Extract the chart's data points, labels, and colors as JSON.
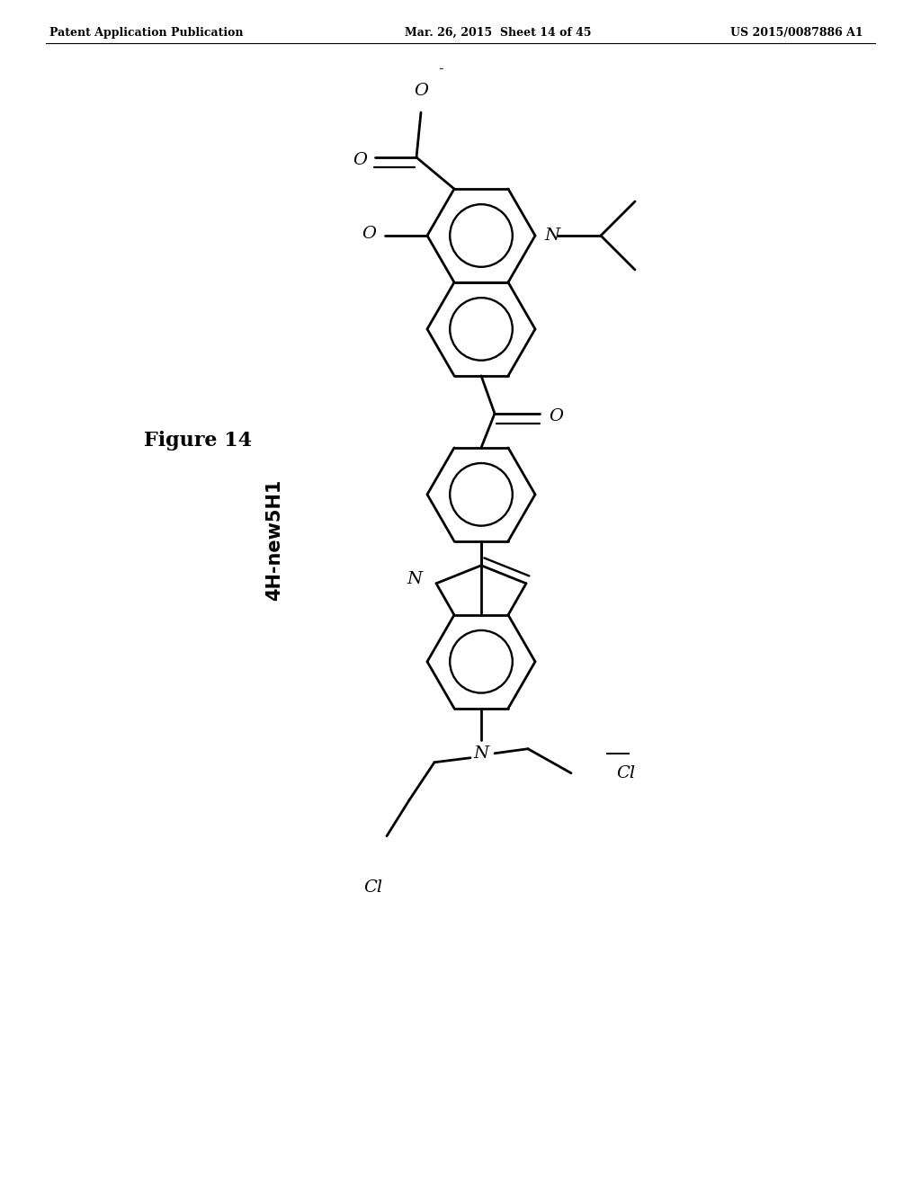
{
  "header_left": "Patent Application Publication",
  "header_mid": "Mar. 26, 2015  Sheet 14 of 45",
  "header_right": "US 2015/0087886 A1",
  "figure_label": "Figure 14",
  "compound_label": "4H-new5H1",
  "bg_color": "#ffffff",
  "text_color": "#000000",
  "line_color": "#000000",
  "line_width": 2.0,
  "font_size_header": 9,
  "font_size_label": 14,
  "font_size_atom": 13
}
